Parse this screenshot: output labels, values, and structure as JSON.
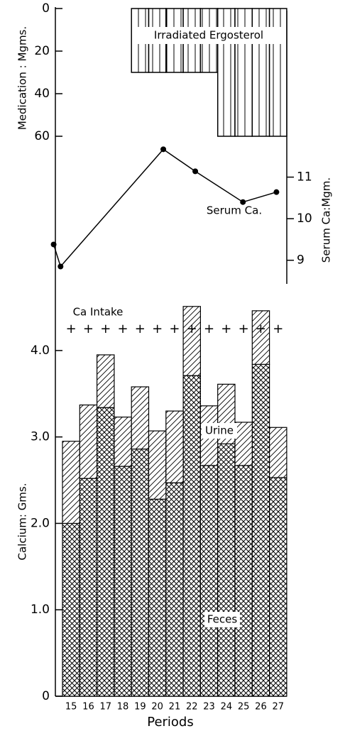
{
  "chart_data": [
    {
      "type": "bar",
      "annotation": "Irradiated Ergosterol",
      "ylabel": "Medication : Mgms.",
      "categories": [
        "15",
        "16",
        "17",
        "18",
        "19",
        "20",
        "21",
        "22",
        "23",
        "24",
        "25",
        "26",
        "27"
      ],
      "values": [
        0,
        0,
        0,
        0,
        30,
        30,
        30,
        30,
        30,
        60,
        60,
        60,
        60
      ],
      "color": "#000000",
      "ylim": [
        0,
        60
      ],
      "yticks": [
        0,
        20,
        40,
        60
      ]
    },
    {
      "type": "line",
      "annotation": "Serum Ca.",
      "ylabel": "Serum Ca:Mgm.",
      "x": [
        14.0,
        14.4,
        20.35,
        22.2,
        24.96,
        26.9
      ],
      "values": [
        9.38,
        8.85,
        11.67,
        11.14,
        10.4,
        10.64
      ],
      "color": "#000000",
      "xlim": [
        14.1,
        27.5
      ],
      "ylim": [
        8.5,
        12
      ],
      "yticks": [
        9,
        10,
        11
      ]
    },
    {
      "type": "stacked_bar",
      "ylabel": "Calcium: Gms.",
      "xlabel": "Periods",
      "annotation": "Ca Intake",
      "intake_marker": "+",
      "categories": [
        "15",
        "16",
        "17",
        "18",
        "19",
        "20",
        "21",
        "22",
        "23",
        "24",
        "25",
        "26",
        "27"
      ],
      "series": [
        {
          "name": "Feces",
          "color": "#000000",
          "values": [
            2.0,
            2.52,
            3.34,
            2.66,
            2.86,
            2.28,
            2.47,
            3.71,
            2.67,
            2.92,
            2.67,
            3.84,
            2.53
          ]
        },
        {
          "name": "Urine",
          "color": "#000000",
          "values": [
            0.95,
            0.85,
            0.61,
            0.57,
            0.72,
            0.79,
            0.83,
            0.8,
            0.69,
            0.69,
            0.5,
            0.62,
            0.58
          ]
        }
      ],
      "ylim": [
        0,
        4.5
      ],
      "yticks": [
        0,
        {
          "value": 1,
          "label": "1.0"
        },
        {
          "value": 2,
          "label": "2.0"
        },
        {
          "value": 3,
          "label": "3.0"
        },
        {
          "value": 4,
          "label": "4.0"
        }
      ]
    }
  ]
}
